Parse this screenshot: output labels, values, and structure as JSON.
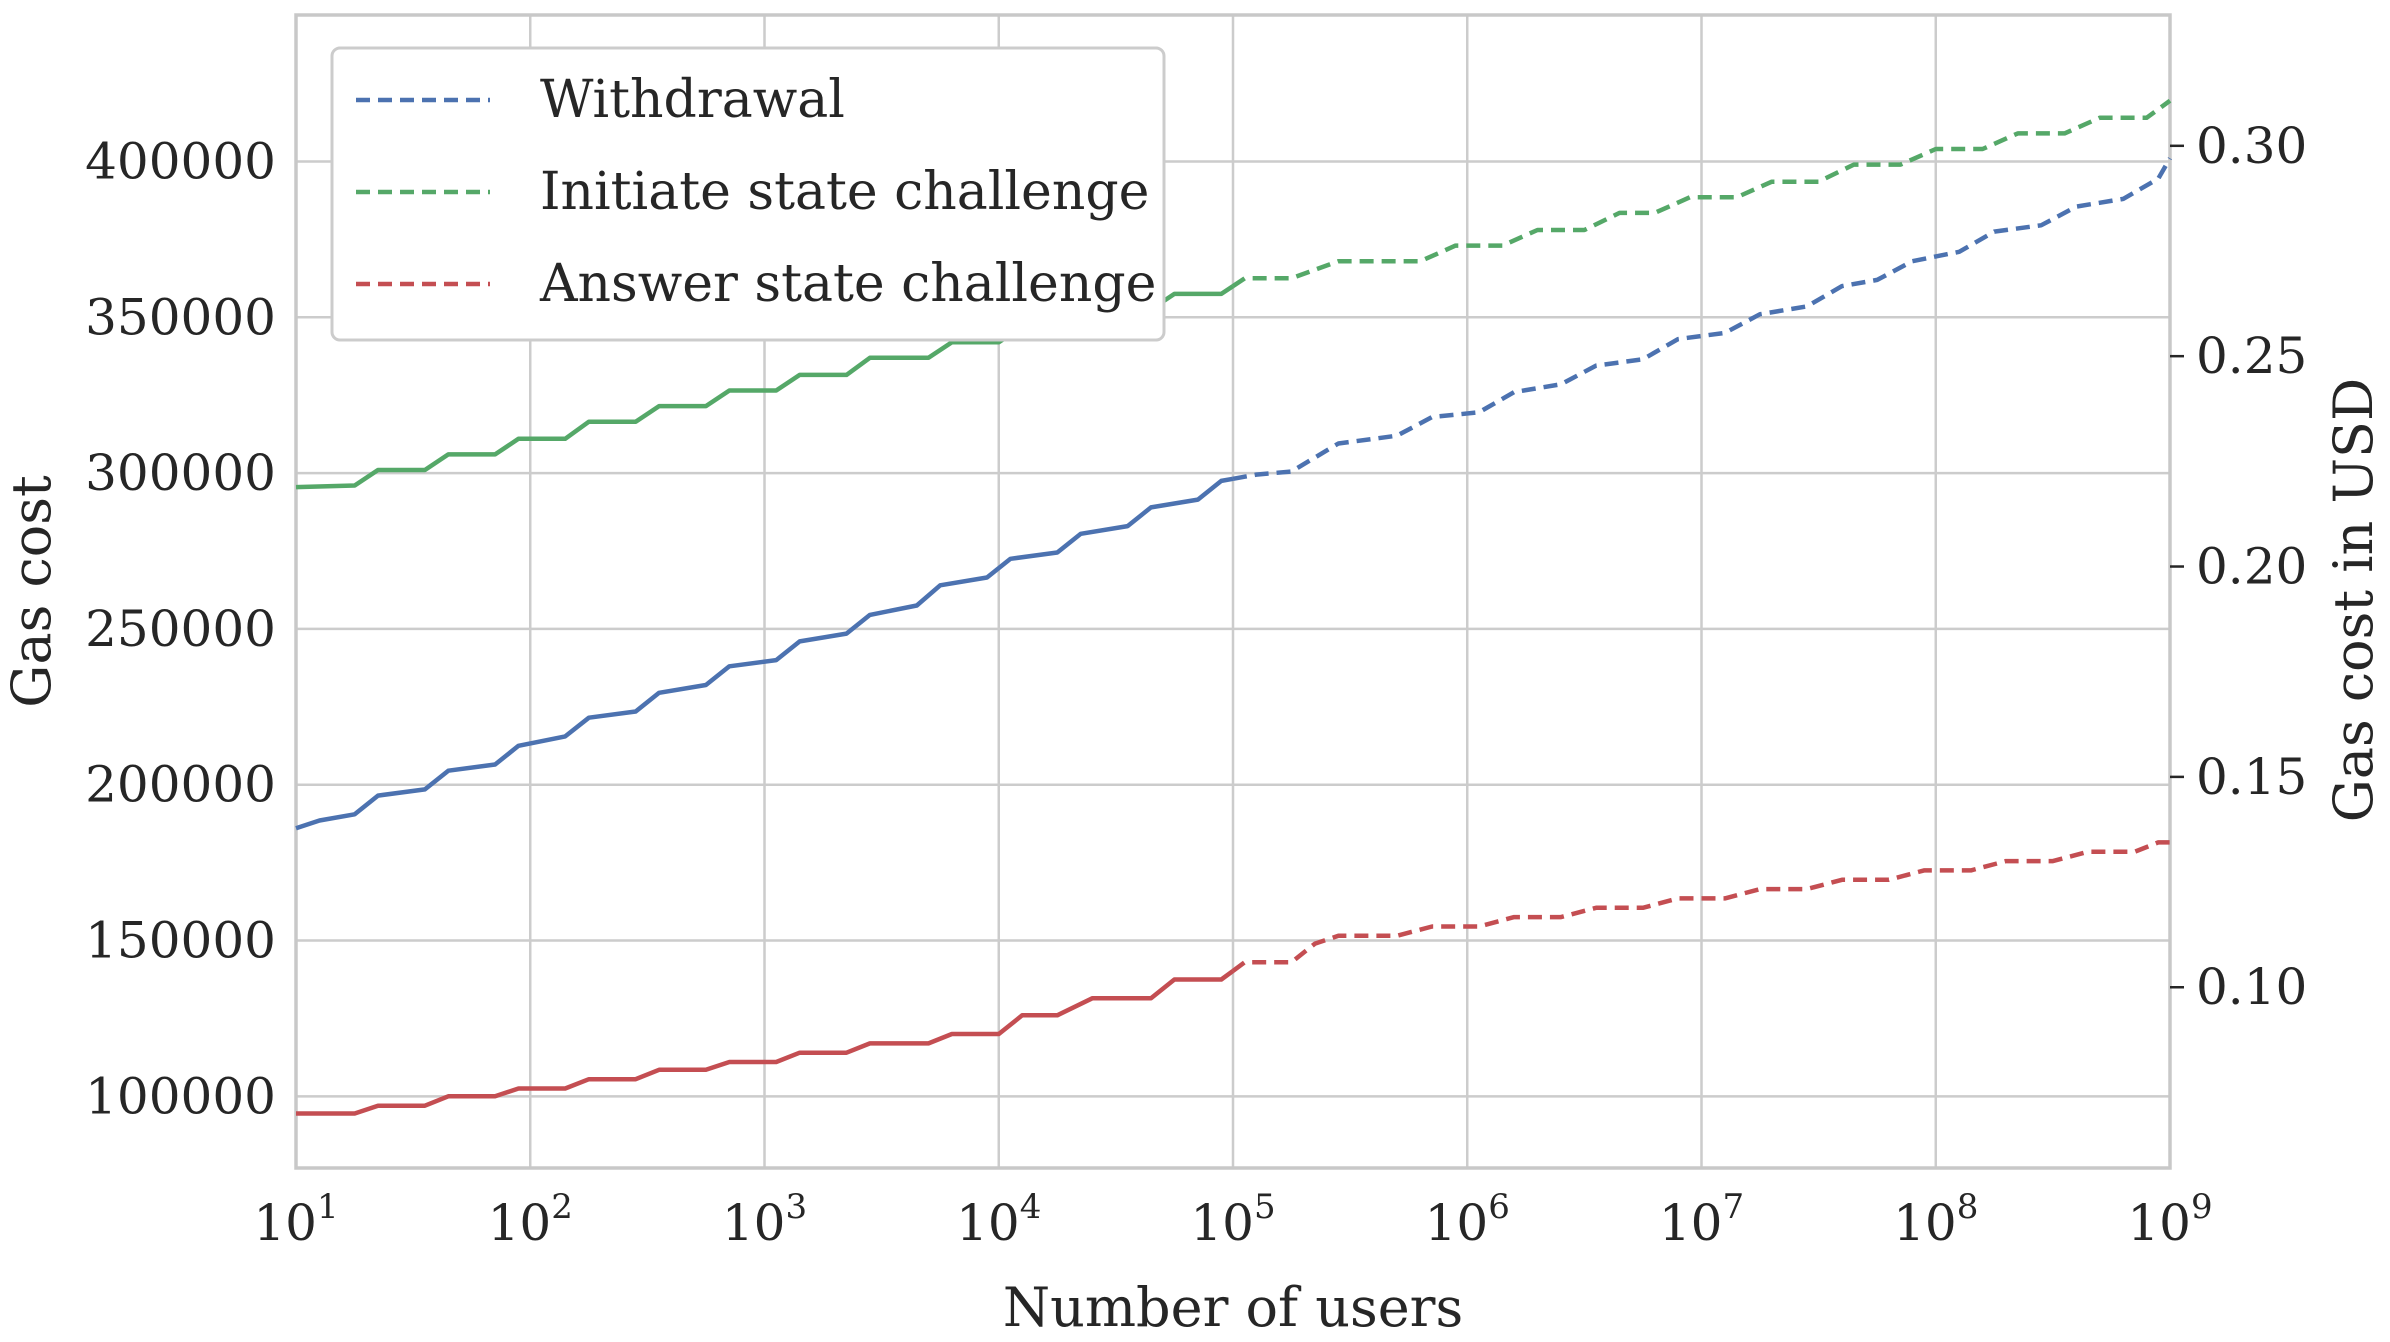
{
  "chart_data": {
    "type": "line",
    "x_scale": "log",
    "x_label": "Number of users",
    "y_label": "Gas cost",
    "y2_label": "Gas cost in USD",
    "x_ticks": [
      {
        "base": "10",
        "exp": "1"
      },
      {
        "base": "10",
        "exp": "2"
      },
      {
        "base": "10",
        "exp": "3"
      },
      {
        "base": "10",
        "exp": "4"
      },
      {
        "base": "10",
        "exp": "5"
      },
      {
        "base": "10",
        "exp": "6"
      },
      {
        "base": "10",
        "exp": "7"
      },
      {
        "base": "10",
        "exp": "8"
      },
      {
        "base": "10",
        "exp": "9"
      }
    ],
    "y_ticks": [
      "100000",
      "150000",
      "200000",
      "250000",
      "300000",
      "350000",
      "400000"
    ],
    "y2_ticks": [
      "0.10",
      "0.15",
      "0.20",
      "0.25",
      "0.30"
    ],
    "xlim": [
      10,
      1000000000
    ],
    "ylim": [
      77000,
      447000
    ],
    "y2_unit_per_gas": 7.407e-07,
    "grid": true,
    "legend_position": "upper-left",
    "legend": [
      {
        "label": "Withdrawal",
        "color": "#4c72b0",
        "style": "dashed"
      },
      {
        "label": "Initiate state challenge",
        "color": "#55a868",
        "style": "dashed"
      },
      {
        "label": "Answer state challenge",
        "color": "#c44e52",
        "style": "dashed"
      }
    ],
    "series": [
      {
        "name": "Withdrawal",
        "color": "#4c72b0",
        "solid_until_x": 100000,
        "points": [
          [
            10,
            186000
          ],
          [
            12.6,
            188500
          ],
          [
            17.8,
            190500
          ],
          [
            22.4,
            196500
          ],
          [
            35.5,
            198500
          ],
          [
            44.7,
            204500
          ],
          [
            70.8,
            206500
          ],
          [
            89.1,
            212500
          ],
          [
            141,
            215500
          ],
          [
            178,
            221500
          ],
          [
            282,
            223500
          ],
          [
            355,
            229500
          ],
          [
            562,
            232000
          ],
          [
            708,
            238000
          ],
          [
            1122,
            240000
          ],
          [
            1413,
            246000
          ],
          [
            2239,
            248500
          ],
          [
            2818,
            254500
          ],
          [
            4467,
            257500
          ],
          [
            5623,
            264000
          ],
          [
            8913,
            266500
          ],
          [
            11220,
            272500
          ],
          [
            17780,
            274500
          ],
          [
            22390,
            280500
          ],
          [
            35480,
            283000
          ],
          [
            44670,
            289000
          ],
          [
            70790,
            291500
          ],
          [
            89130,
            297500
          ],
          [
            125900,
            299500
          ],
          [
            177800,
            300500
          ],
          [
            281800,
            309500
          ],
          [
            501200,
            312000
          ],
          [
            707900,
            318000
          ],
          [
            1122000,
            319500
          ],
          [
            1585000,
            326000
          ],
          [
            2512000,
            328500
          ],
          [
            3548000,
            334500
          ],
          [
            5623000,
            336500
          ],
          [
            7943000,
            343000
          ],
          [
            12590000,
            345000
          ],
          [
            17780000,
            351000
          ],
          [
            28180000,
            353500
          ],
          [
            39810000,
            360000
          ],
          [
            56230000,
            362000
          ],
          [
            79430000,
            368000
          ],
          [
            125900000,
            371000
          ],
          [
            177800000,
            377500
          ],
          [
            281800000,
            379500
          ],
          [
            398100000,
            385500
          ],
          [
            631000000,
            388000
          ],
          [
            891300000,
            394500
          ],
          [
            1000000000,
            401000
          ]
        ]
      },
      {
        "name": "Initiate state challenge",
        "color": "#55a868",
        "solid_until_x": 100000,
        "points": [
          [
            10,
            295500
          ],
          [
            17.8,
            296000
          ],
          [
            22.4,
            301000
          ],
          [
            35.5,
            301000
          ],
          [
            44.7,
            306000
          ],
          [
            70.8,
            306000
          ],
          [
            89.1,
            311000
          ],
          [
            141,
            311000
          ],
          [
            178,
            316500
          ],
          [
            282,
            316500
          ],
          [
            355,
            321500
          ],
          [
            562,
            321500
          ],
          [
            708,
            326500
          ],
          [
            1122,
            326500
          ],
          [
            1413,
            331500
          ],
          [
            2239,
            331500
          ],
          [
            2818,
            337000
          ],
          [
            5011,
            337000
          ],
          [
            6310,
            342000
          ],
          [
            10000,
            342000
          ],
          [
            12590,
            347000
          ],
          [
            17780,
            347000
          ],
          [
            25120,
            352500
          ],
          [
            44670,
            352500
          ],
          [
            56230,
            357500
          ],
          [
            89130,
            357500
          ],
          [
            112200,
            362500
          ],
          [
            177800,
            362500
          ],
          [
            281800,
            368000
          ],
          [
            631000,
            368000
          ],
          [
            891300,
            373000
          ],
          [
            1413000,
            373000
          ],
          [
            1995000,
            378000
          ],
          [
            3162000,
            378000
          ],
          [
            4467000,
            383500
          ],
          [
            6310000,
            383500
          ],
          [
            8913000,
            388500
          ],
          [
            14130000,
            388500
          ],
          [
            19950000,
            393500
          ],
          [
            31620000,
            393500
          ],
          [
            44670000,
            399000
          ],
          [
            70790000,
            399000
          ],
          [
            100000000,
            404000
          ],
          [
            158500000,
            404000
          ],
          [
            223900000,
            409000
          ],
          [
            354800000,
            409000
          ],
          [
            501200000,
            414000
          ],
          [
            794300000,
            414000
          ],
          [
            1000000000,
            419500
          ]
        ]
      },
      {
        "name": "Answer state challenge",
        "color": "#c44e52",
        "solid_until_x": 100000,
        "points": [
          [
            10,
            94500
          ],
          [
            17.8,
            94500
          ],
          [
            22.4,
            97000
          ],
          [
            35.5,
            97000
          ],
          [
            44.7,
            100000
          ],
          [
            70.8,
            100000
          ],
          [
            89.1,
            102500
          ],
          [
            141,
            102500
          ],
          [
            178,
            105500
          ],
          [
            282,
            105500
          ],
          [
            355,
            108500
          ],
          [
            562,
            108500
          ],
          [
            708,
            111000
          ],
          [
            1122,
            111000
          ],
          [
            1413,
            114000
          ],
          [
            2239,
            114000
          ],
          [
            2818,
            117000
          ],
          [
            5011,
            117000
          ],
          [
            6310,
            120000
          ],
          [
            10000,
            120000
          ],
          [
            12590,
            126000
          ],
          [
            17780,
            126000
          ],
          [
            25120,
            131500
          ],
          [
            44670,
            131500
          ],
          [
            56230,
            137500
          ],
          [
            89130,
            137500
          ],
          [
            112200,
            143000
          ],
          [
            177800,
            143000
          ],
          [
            223900,
            149000
          ],
          [
            281800,
            151500
          ],
          [
            501200,
            151500
          ],
          [
            707900,
            154500
          ],
          [
            1122000,
            154500
          ],
          [
            1585000,
            157500
          ],
          [
            2512000,
            157500
          ],
          [
            3548000,
            160500
          ],
          [
            5623000,
            160500
          ],
          [
            7943000,
            163500
          ],
          [
            12590000,
            163500
          ],
          [
            17780000,
            166500
          ],
          [
            28180000,
            166500
          ],
          [
            39810000,
            169500
          ],
          [
            63100000,
            169500
          ],
          [
            89130000,
            172500
          ],
          [
            141300000,
            172500
          ],
          [
            199500000,
            175500
          ],
          [
            316200000,
            175500
          ],
          [
            446700000,
            178500
          ],
          [
            707900000,
            178500
          ],
          [
            891300000,
            181500
          ],
          [
            1000000000,
            181500
          ]
        ]
      }
    ]
  }
}
